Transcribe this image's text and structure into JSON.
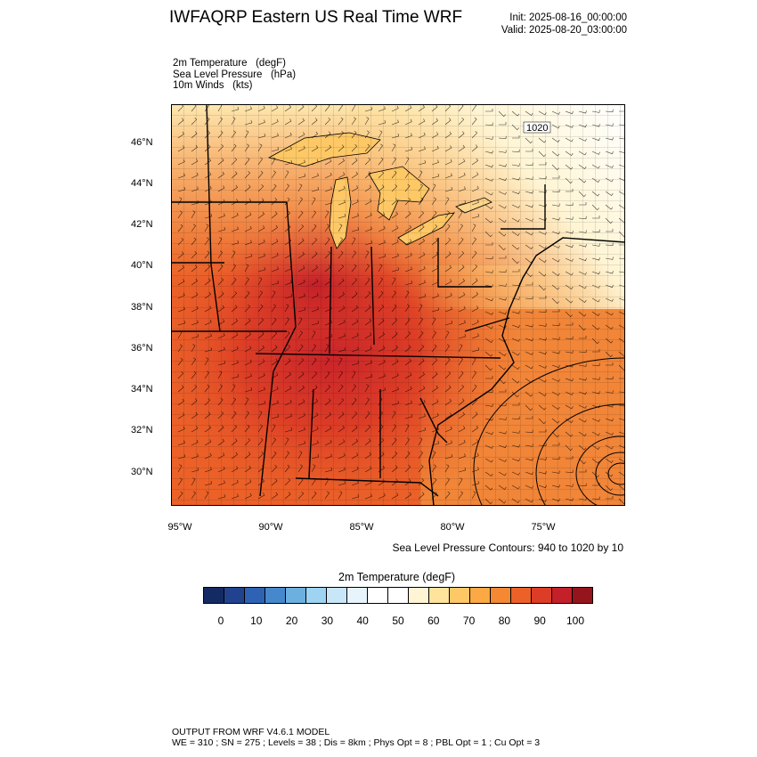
{
  "header": {
    "title": "IWFAQRP Eastern US Real Time WRF",
    "init": "Init: 2025-08-16_00:00:00",
    "valid": "Valid: 2025-08-20_03:00:00"
  },
  "fields": {
    "line1": "2m Temperature   (degF)",
    "line2": "Sea Level Pressure   (hPa)",
    "line3": "10m Winds   (kts)"
  },
  "map": {
    "lat_labels": [
      "46°N",
      "44°N",
      "42°N",
      "40°N",
      "38°N",
      "36°N",
      "34°N",
      "32°N",
      "30°N"
    ],
    "lon_labels": [
      "95°W",
      "90°W",
      "85°W",
      "80°W",
      "75°W"
    ],
    "contour_label": "1020",
    "slp_note": "Sea Level Pressure Contours: 940 to 1020 by 10"
  },
  "colorbar": {
    "title": "2m Temperature  (degF)",
    "labels": [
      "0",
      "10",
      "20",
      "30",
      "40",
      "50",
      "60",
      "70",
      "80",
      "90",
      "100"
    ],
    "colors": [
      "#142a63",
      "#21428f",
      "#2e62b4",
      "#4688cc",
      "#6cb0e0",
      "#9ed3f1",
      "#c8e6f7",
      "#e7f4fb",
      "#ffffff",
      "#ffffff",
      "#fff5d4",
      "#fee39c",
      "#fdc865",
      "#fba944",
      "#f48833",
      "#eb6128",
      "#dc3d26",
      "#c3202a",
      "#95151c"
    ]
  },
  "footer": {
    "line1": "OUTPUT FROM WRF V4.6.1 MODEL",
    "line2": "WE = 310 ; SN = 275 ; Levels = 38 ; Dis = 8km ; Phys Opt = 8 ; PBL Opt = 1 ; Cu Opt = 3"
  }
}
